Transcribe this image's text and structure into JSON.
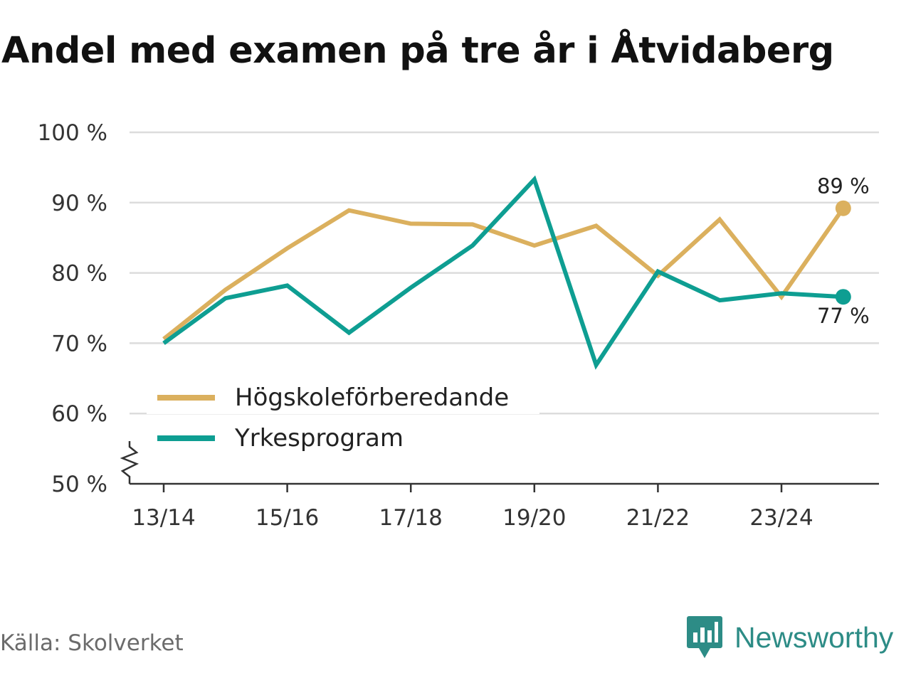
{
  "title": "Andel med examen på tre år i Åtvidaberg",
  "source": "Källa: Skolverket",
  "brand": {
    "name": "Newsworthy",
    "logo_icon": "newsworthy-chart-logo-icon",
    "color": "#2d8c86"
  },
  "chart_data": {
    "type": "line",
    "title": "Andel med examen på tre år i Åtvidaberg",
    "xlabel": "",
    "ylabel": "",
    "x": [
      "13/14",
      "14/15",
      "15/16",
      "16/17",
      "17/18",
      "18/19",
      "19/20",
      "20/21",
      "21/22",
      "22/23",
      "23/24",
      "24/25"
    ],
    "x_tick_labels": [
      "13/14",
      "15/16",
      "17/18",
      "19/20",
      "21/22",
      "23/24"
    ],
    "ylim": [
      50,
      100
    ],
    "y_ticks": [
      50,
      60,
      70,
      80,
      90,
      100
    ],
    "y_tick_labels": [
      "50 %",
      "60 %",
      "70 %",
      "80 %",
      "90 %",
      "100 %"
    ],
    "y_axis_break": true,
    "grid": true,
    "legend_position": "bottom-left",
    "series": [
      {
        "name": "Högskoleförberedande",
        "color": "#dbb05e",
        "values": [
          70.6,
          77.6,
          83.5,
          88.9,
          87.0,
          86.9,
          83.9,
          86.7,
          79.6,
          87.6,
          76.6,
          89.2
        ],
        "end_label": "89 %"
      },
      {
        "name": "Yrkesprogram",
        "color": "#0e9e92",
        "values": [
          70.0,
          76.4,
          78.2,
          71.5,
          77.9,
          83.9,
          93.3,
          66.9,
          80.2,
          76.1,
          77.1,
          76.6
        ],
        "end_label": "77 %"
      }
    ]
  }
}
